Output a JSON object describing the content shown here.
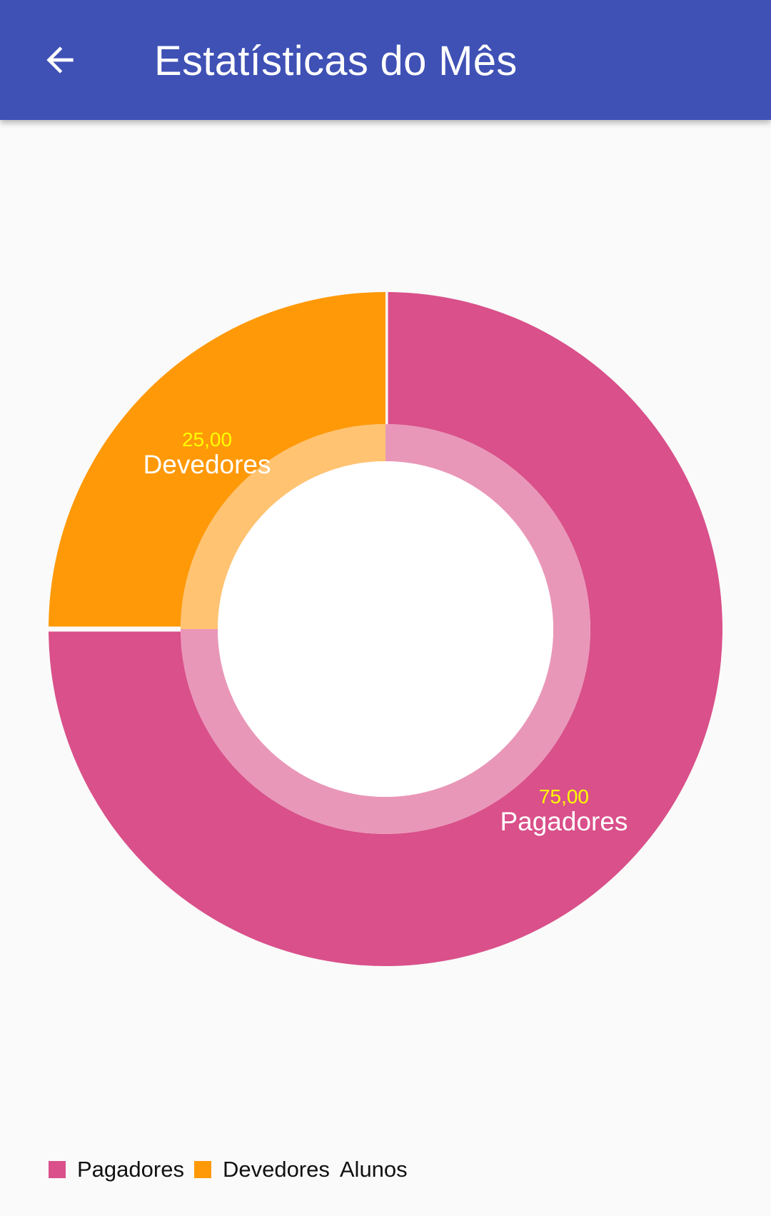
{
  "app_bar": {
    "title": "Estatísticas do Mês",
    "back_icon": "arrow-back-icon",
    "background_color": "#3f51b5"
  },
  "chart_data": {
    "type": "pie",
    "variant": "donut",
    "slices": [
      {
        "label": "Pagadores",
        "value": 75,
        "value_label": "75,00",
        "color": "#d9508a",
        "inner_color": "#e997b8"
      },
      {
        "label": "Devedores",
        "value": 25,
        "value_label": "25,00",
        "color": "#ff9908",
        "inner_color": "#ffc372"
      }
    ],
    "value_label_color": "#ffff00",
    "slice_label_color": "#ffffff",
    "legend_position": "bottom-left",
    "legend": {
      "entries": [
        {
          "label": "Pagadores",
          "color": "#d9508a"
        },
        {
          "label": "Devedores",
          "color": "#ff9908"
        }
      ],
      "description": "Alunos"
    }
  }
}
